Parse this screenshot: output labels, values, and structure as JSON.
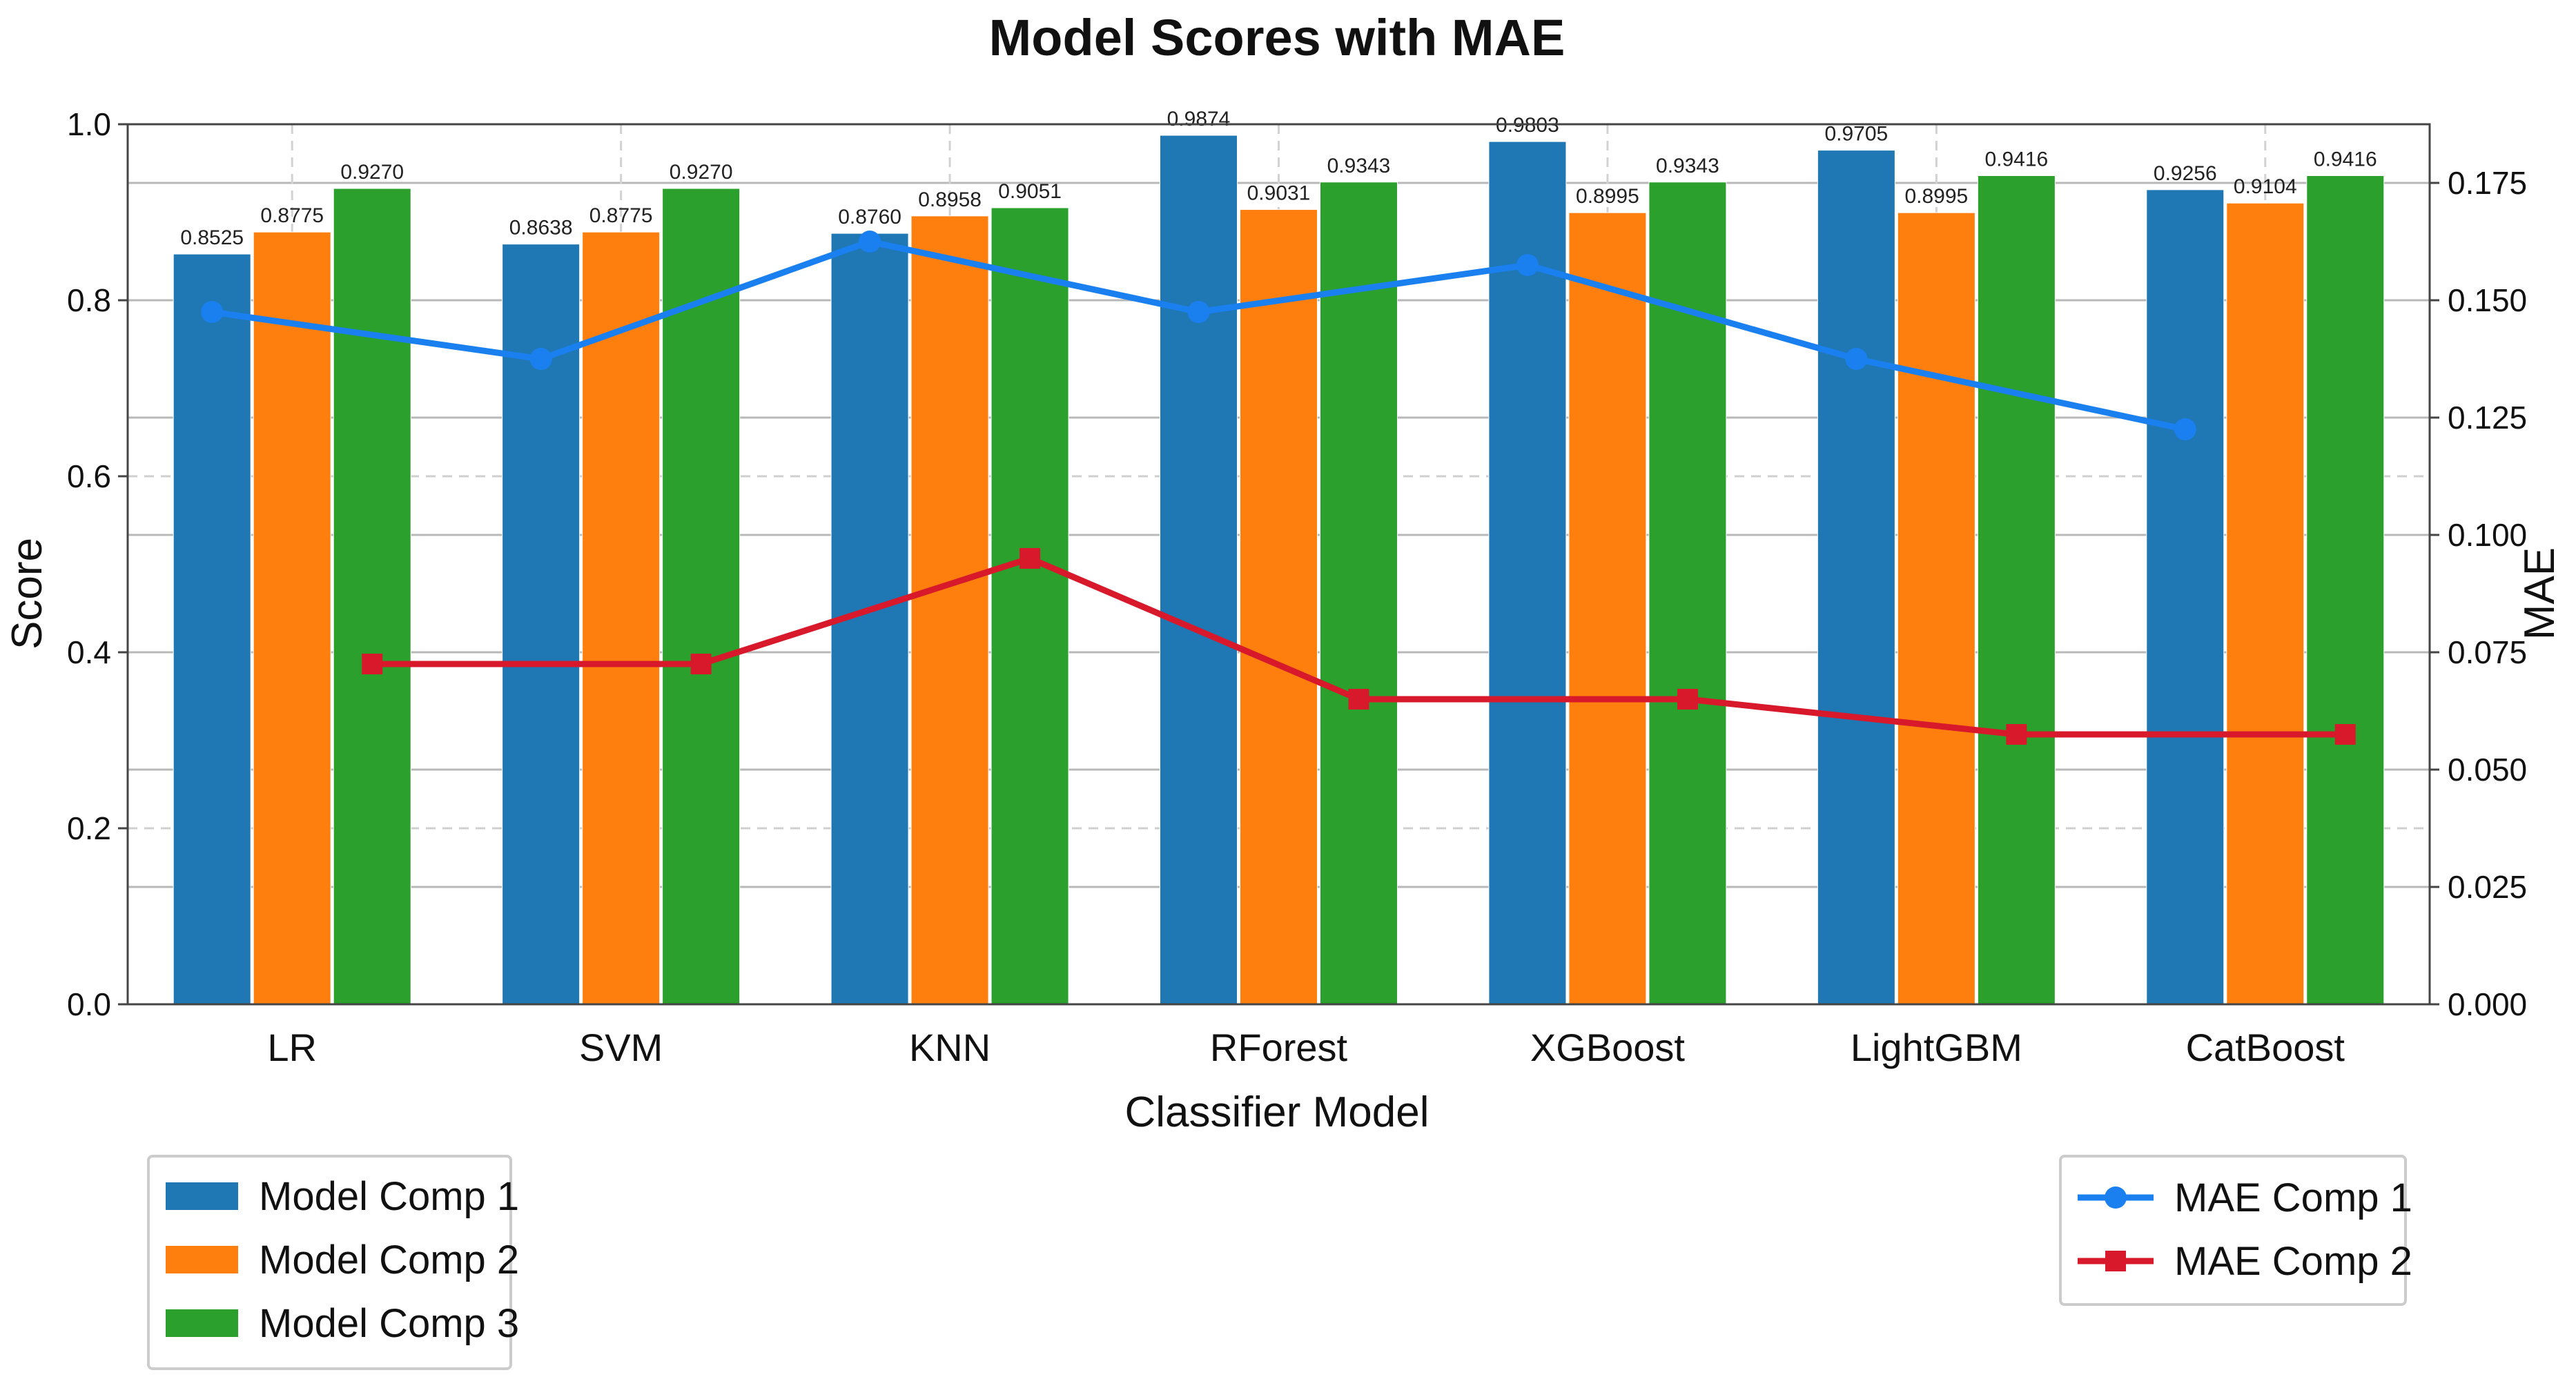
{
  "chart_data": {
    "type": "bar",
    "title": "Model Scores with MAE",
    "xlabel": "Classifier Model",
    "ylabel": "Score",
    "y2label": "MAE",
    "ylim": [
      0,
      1.0
    ],
    "y2lim": [
      0,
      0.1875
    ],
    "yticks": [
      "0.0",
      "0.2",
      "0.4",
      "0.6",
      "0.8",
      "1.0"
    ],
    "y2ticks": [
      "0.000",
      "0.025",
      "0.050",
      "0.075",
      "0.100",
      "0.125",
      "0.150",
      "0.175"
    ],
    "categories": [
      "LR",
      "SVM",
      "KNN",
      "RForest",
      "XGBoost",
      "LightGBM",
      "CatBoost"
    ],
    "series": [
      {
        "name": "Model Comp 1",
        "color": "#1f77b4",
        "values": [
          0.8525,
          0.8638,
          0.876,
          0.9874,
          0.9803,
          0.9705,
          0.9256
        ],
        "labels": [
          "0.8525",
          "0.8638",
          "0.8760",
          "0.9874",
          "0.9803",
          "0.9705",
          "0.9256"
        ]
      },
      {
        "name": "Model Comp 2",
        "color": "#ff7f0e",
        "values": [
          0.8775,
          0.8775,
          0.8958,
          0.9031,
          0.8995,
          0.8995,
          0.9104
        ],
        "labels": [
          "0.8775",
          "0.8775",
          "0.8958",
          "0.9031",
          "0.8995",
          "0.8995",
          "0.9104"
        ]
      },
      {
        "name": "Model Comp 3",
        "color": "#2ca02c",
        "values": [
          0.927,
          0.927,
          0.9051,
          0.9343,
          0.9343,
          0.9416,
          0.9416
        ],
        "labels": [
          "0.9270",
          "0.9270",
          "0.9051",
          "0.9343",
          "0.9343",
          "0.9416",
          "0.9416"
        ]
      }
    ],
    "lines": [
      {
        "name": "MAE Comp 1",
        "color": "#1a80f0",
        "marker": "circle",
        "values": [
          0.1475,
          0.1375,
          0.1625,
          0.1475,
          0.1575,
          0.1375,
          0.1225
        ]
      },
      {
        "name": "MAE Comp 2",
        "color": "#d7192b",
        "marker": "square",
        "values": [
          0.0725,
          0.0725,
          0.095,
          0.065,
          0.065,
          0.0575,
          0.0575
        ]
      }
    ],
    "legend_bars_position": "bottom-left",
    "legend_lines_position": "bottom-right",
    "grid": true
  }
}
